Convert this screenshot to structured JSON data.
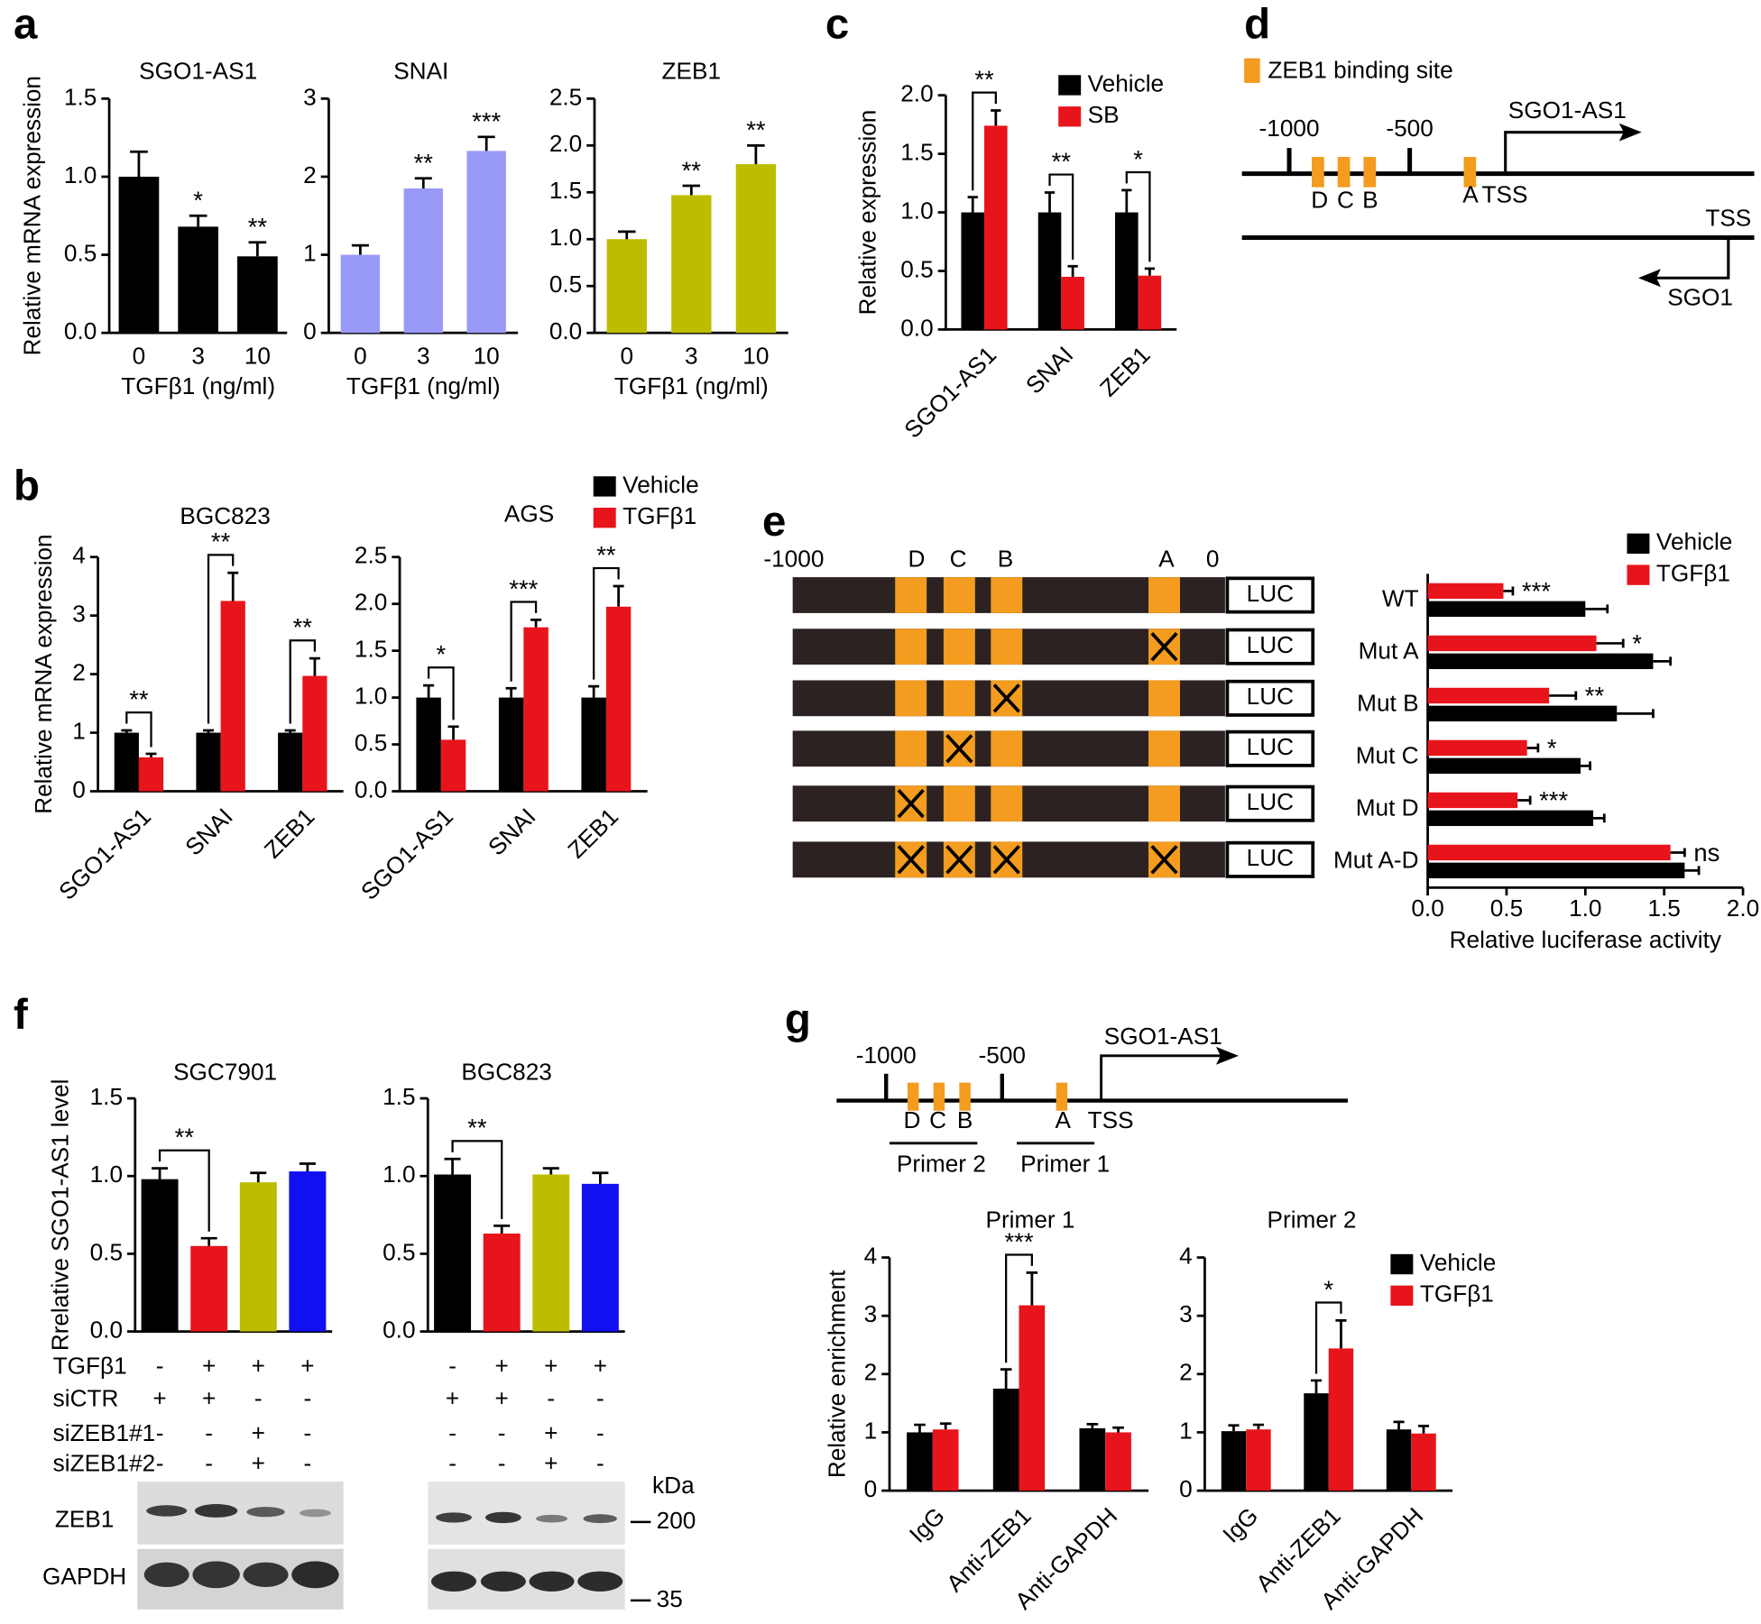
{
  "panel_labels": [
    "a",
    "b",
    "c",
    "d",
    "e",
    "f",
    "g"
  ],
  "chart_data": [
    {
      "type": "bar",
      "title": "SGO1-AS1",
      "y_label": "Relative mRNA expression",
      "x_label": "TGFβ1 (ng/ml)",
      "categories": [
        "0",
        "3",
        "10"
      ],
      "values": [
        1.0,
        0.68,
        0.49
      ],
      "errors": [
        0.16,
        0.07,
        0.09
      ],
      "color": "#000000",
      "significance": [
        null,
        "*",
        "**"
      ],
      "ylim": [
        0,
        1.5
      ],
      "yticks": [
        {
          "value": 0,
          "label": "0.0"
        },
        {
          "value": 0.5,
          "label": "0.5"
        },
        {
          "value": 1,
          "label": "1.0"
        },
        {
          "value": 1.5,
          "label": "1.5"
        }
      ]
    },
    {
      "type": "bar",
      "title": "SNAI",
      "x_label": "TGFβ1 (ng/ml)",
      "categories": [
        "0",
        "3",
        "10"
      ],
      "values": [
        1.0,
        1.85,
        2.33
      ],
      "errors": [
        0.12,
        0.13,
        0.18
      ],
      "color": "#9999f7",
      "significance": [
        null,
        "**",
        "***"
      ],
      "ylim": [
        0,
        3
      ],
      "yticks": [
        0,
        1,
        2,
        3
      ]
    },
    {
      "type": "bar",
      "title": "ZEB1",
      "x_label": "TGFβ1 (ng/ml)",
      "categories": [
        "0",
        "3",
        "10"
      ],
      "values": [
        1.0,
        1.47,
        1.8
      ],
      "errors": [
        0.08,
        0.1,
        0.2
      ],
      "color": "#bdbd00",
      "significance": [
        null,
        "**",
        "**"
      ],
      "ylim": [
        0,
        2.5
      ],
      "yticks": [
        {
          "value": 0,
          "label": "0.0"
        },
        {
          "value": 0.5,
          "label": "0.5"
        },
        {
          "value": 1,
          "label": "1.0"
        },
        {
          "value": 1.5,
          "label": "1.5"
        },
        {
          "value": 2,
          "label": "2.0"
        },
        {
          "value": 2.5,
          "label": "2.5"
        }
      ]
    },
    {
      "type": "bar",
      "title": "BGC823",
      "y_label": "Relative mRNA expression",
      "categories": [
        "SGO1-AS1",
        "SNAI",
        "ZEB1"
      ],
      "series": [
        {
          "color": "#000000",
          "values": [
            1.0,
            1.0,
            1.0
          ],
          "errors": [
            0.04,
            0.04,
            0.04
          ]
        },
        {
          "color": "#e8141c",
          "values": [
            0.58,
            3.25,
            1.97
          ],
          "errors": [
            0.06,
            0.48,
            0.3
          ]
        }
      ],
      "significance": [
        "**",
        "**",
        "**"
      ],
      "ylim": [
        0,
        4
      ],
      "yticks": [
        0,
        1,
        2,
        3,
        4
      ]
    },
    {
      "type": "bar",
      "title": "AGS",
      "categories": [
        "SGO1-AS1",
        "SNAI",
        "ZEB1"
      ],
      "series": [
        {
          "name": "Vehicle",
          "color": "#000000",
          "values": [
            1.0,
            1.0,
            1.0
          ],
          "errors": [
            0.13,
            0.1,
            0.12
          ]
        },
        {
          "name": "TGFβ1",
          "color": "#e8141c",
          "values": [
            0.55,
            1.75,
            1.97
          ],
          "errors": [
            0.14,
            0.08,
            0.22
          ]
        }
      ],
      "significance": [
        "*",
        "***",
        "**"
      ],
      "legend": "top-right",
      "ylim": [
        0,
        2.5
      ],
      "yticks": [
        {
          "value": 0,
          "label": "0.0"
        },
        {
          "value": 0.5,
          "label": "0.5"
        },
        {
          "value": 1,
          "label": "1.0"
        },
        {
          "value": 1.5,
          "label": "1.5"
        },
        {
          "value": 2,
          "label": "2.0"
        },
        {
          "value": 2.5,
          "label": "2.5"
        }
      ]
    },
    {
      "type": "bar",
      "y_label": "Relative expression",
      "categories": [
        "SGO1-AS1",
        "SNAI",
        "ZEB1"
      ],
      "series": [
        {
          "name": "Vehicle",
          "color": "#000000",
          "values": [
            1.0,
            1.0,
            1.0
          ],
          "errors": [
            0.13,
            0.17,
            0.19
          ]
        },
        {
          "name": "SB",
          "color": "#e8141c",
          "values": [
            1.74,
            0.45,
            0.46
          ],
          "errors": [
            0.13,
            0.09,
            0.06
          ]
        }
      ],
      "significance": [
        "**",
        "**",
        "*"
      ],
      "legend": "top-right",
      "ylim": [
        0,
        2
      ],
      "yticks": [
        {
          "value": 0,
          "label": "0.0"
        },
        {
          "value": 0.5,
          "label": "0.5"
        },
        {
          "value": 1,
          "label": "1.0"
        },
        {
          "value": 1.5,
          "label": "1.5"
        },
        {
          "value": 2,
          "label": "2.0"
        }
      ]
    },
    {
      "type": "hbar",
      "x_label": "Relative luciferase activity",
      "categories": [
        "WT",
        "Mut A",
        "Mut B",
        "Mut C",
        "Mut D",
        "Mut A-D"
      ],
      "series": [
        {
          "name": "Vehicle",
          "color": "#000000",
          "values": [
            1.0,
            1.43,
            1.2,
            0.97,
            1.05,
            1.63
          ],
          "errors": [
            0.14,
            0.11,
            0.23,
            0.06,
            0.07,
            0.09
          ]
        },
        {
          "name": "TGFβ1",
          "color": "#e8141c",
          "values": [
            0.48,
            1.07,
            0.77,
            0.63,
            0.57,
            1.54
          ],
          "errors": [
            0.06,
            0.17,
            0.17,
            0.07,
            0.08,
            0.09
          ]
        }
      ],
      "significance": [
        "***",
        "*",
        "**",
        "*",
        "***",
        "ns"
      ],
      "legend": "top-right",
      "xlim": [
        0,
        2
      ],
      "xticks": [
        {
          "value": 0,
          "label": "0.0"
        },
        {
          "value": 0.5,
          "label": "0.5"
        },
        {
          "value": 1,
          "label": "1.0"
        },
        {
          "value": 1.5,
          "label": "1.5"
        },
        {
          "value": 2,
          "label": "2.0"
        }
      ]
    },
    {
      "type": "bar",
      "title": "SGC7901",
      "y_label": "Rrelative SGO1-AS1 level",
      "values": [
        0.98,
        0.55,
        0.96,
        1.03
      ],
      "errors": [
        0.07,
        0.05,
        0.06,
        0.05
      ],
      "colors": [
        "#000000",
        "#e8141c",
        "#bdbd00",
        "#1010f0"
      ],
      "significance": "**",
      "conditions": [
        [
          "-",
          "+",
          "+",
          "+"
        ],
        [
          "+",
          "+",
          "-",
          "-"
        ],
        [
          "-",
          "-",
          "+",
          "-"
        ],
        [
          "-",
          "-",
          "+",
          "-"
        ]
      ],
      "ylim": [
        0,
        1.5
      ],
      "yticks": [
        {
          "value": 0,
          "label": "0.0"
        },
        {
          "value": 0.5,
          "label": "0.5"
        },
        {
          "value": 1,
          "label": "1.0"
        },
        {
          "value": 1.5,
          "label": "1.5"
        }
      ]
    },
    {
      "type": "bar",
      "title": "BGC823",
      "values": [
        1.01,
        0.63,
        1.01,
        0.95
      ],
      "errors": [
        0.1,
        0.05,
        0.04,
        0.07
      ],
      "colors": [
        "#000000",
        "#e8141c",
        "#bdbd00",
        "#1010f0"
      ],
      "significance": "**",
      "conditions": [
        [
          "-",
          "+",
          "+",
          "+"
        ],
        [
          "+",
          "+",
          "-",
          "-"
        ],
        [
          "-",
          "-",
          "+",
          "-"
        ],
        [
          "-",
          "-",
          "+",
          "-"
        ]
      ],
      "ylim": [
        0,
        1.5
      ],
      "yticks": [
        {
          "value": 0,
          "label": "0.0"
        },
        {
          "value": 0.5,
          "label": "0.5"
        },
        {
          "value": 1,
          "label": "1.0"
        },
        {
          "value": 1.5,
          "label": "1.5"
        }
      ]
    },
    {
      "type": "bar",
      "title": "Primer 1",
      "y_label": "Relative enrichment",
      "categories": [
        "IgG",
        "Anti-ZEB1",
        "Anti-GAPDH"
      ],
      "series": [
        {
          "color": "#000000",
          "values": [
            1.0,
            1.75,
            1.07
          ],
          "errors": [
            0.13,
            0.33,
            0.07
          ]
        },
        {
          "color": "#e8141c",
          "values": [
            1.05,
            3.18,
            1.0
          ],
          "errors": [
            0.1,
            0.56,
            0.08
          ]
        }
      ],
      "significance": [
        null,
        "***",
        null
      ],
      "ylim": [
        0,
        4
      ],
      "yticks": [
        0,
        1,
        2,
        3,
        4
      ]
    },
    {
      "type": "bar",
      "title": "Primer 2",
      "categories": [
        "IgG",
        "Anti-ZEB1",
        "Anti-GAPDH"
      ],
      "series": [
        {
          "name": "Vehicle",
          "color": "#000000",
          "values": [
            1.02,
            1.67,
            1.05
          ],
          "errors": [
            0.1,
            0.22,
            0.13
          ]
        },
        {
          "name": "TGFβ1",
          "color": "#e8141c",
          "values": [
            1.05,
            2.44,
            0.98
          ],
          "errors": [
            0.08,
            0.48,
            0.13
          ]
        }
      ],
      "significance": [
        null,
        "*",
        null
      ],
      "legend": "top-right",
      "ylim": [
        0,
        4
      ],
      "yticks": [
        0,
        1,
        2,
        3,
        4
      ]
    }
  ],
  "diagram_d": {
    "legend": "ZEB1 binding site",
    "positions": [
      "-1000",
      "-500"
    ],
    "gene": "SGO1-AS1",
    "sites": [
      "D",
      "C",
      "B",
      "A"
    ],
    "tss": "TSS",
    "gene2": "SGO1"
  },
  "diagram_e": {
    "header": [
      "-1000",
      "D",
      "C",
      "B",
      "A",
      "0"
    ],
    "reporter": "LUC",
    "mutated": [
      [
        false,
        false,
        false,
        false
      ],
      [
        false,
        false,
        false,
        true
      ],
      [
        false,
        false,
        true,
        false
      ],
      [
        false,
        true,
        false,
        false
      ],
      [
        true,
        false,
        false,
        false
      ],
      [
        true,
        true,
        true,
        true
      ]
    ]
  },
  "diagram_g": {
    "positions": [
      "-1000",
      "-500"
    ],
    "gene": "SGO1-AS1",
    "sites": [
      "D",
      "C",
      "B",
      "A"
    ],
    "tss": "TSS",
    "primers": [
      "Primer 2",
      "Primer 1"
    ]
  },
  "table_f": {
    "rows": [
      "TGFβ1",
      "siCTR",
      "siZEB1#1",
      "siZEB1#2"
    ]
  },
  "blot_f": {
    "rows": [
      "ZEB1",
      "GAPDH"
    ],
    "unit": "kDa",
    "markers": [
      200,
      35
    ]
  }
}
